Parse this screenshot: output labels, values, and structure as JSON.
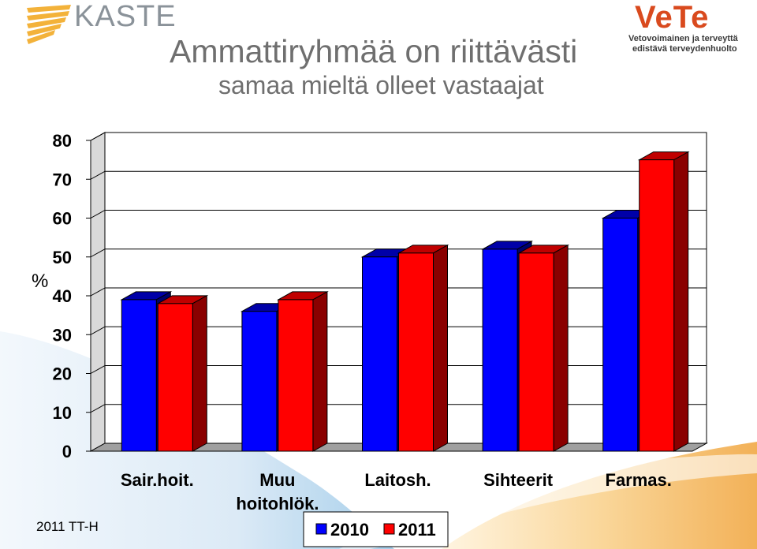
{
  "header": {
    "logo_left": "KASTE",
    "title": "Ammattiryhmää on riittävästi",
    "subtitle": "samaa mieltä olleet vastaajat",
    "logo_right": "VeTe",
    "logo_right_tagline_1": "Vetovoimainen ja terveyttä",
    "logo_right_tagline_2": "edistävä terveydenhuolto"
  },
  "footer": {
    "note": "2011 TT-H"
  },
  "colors": {
    "series_2010": "#0000ff",
    "series_2011": "#ff0000",
    "title": "#6f6f6f",
    "vete": "#d94a1e"
  },
  "chart_data": {
    "type": "bar",
    "categories": [
      "Sair.hoit.",
      "Muu hoitohlök.",
      "Laitosh.",
      "Sihteerit",
      "Farmas."
    ],
    "category_lines": [
      [
        "Sair.hoit."
      ],
      [
        "Muu",
        "hoitohlök."
      ],
      [
        "Laitosh."
      ],
      [
        "Sihteerit"
      ],
      [
        "Farmas."
      ]
    ],
    "series": [
      {
        "name": "2010",
        "values": [
          39,
          36,
          50,
          52,
          60
        ]
      },
      {
        "name": "2011",
        "values": [
          38,
          39,
          51,
          51,
          75
        ]
      }
    ],
    "yticks": [
      0,
      10,
      20,
      30,
      40,
      50,
      60,
      70,
      80
    ],
    "ylim": [
      0,
      80
    ],
    "xlabel": "",
    "ylabel": "%",
    "grid": true,
    "legend_position": "bottom"
  }
}
